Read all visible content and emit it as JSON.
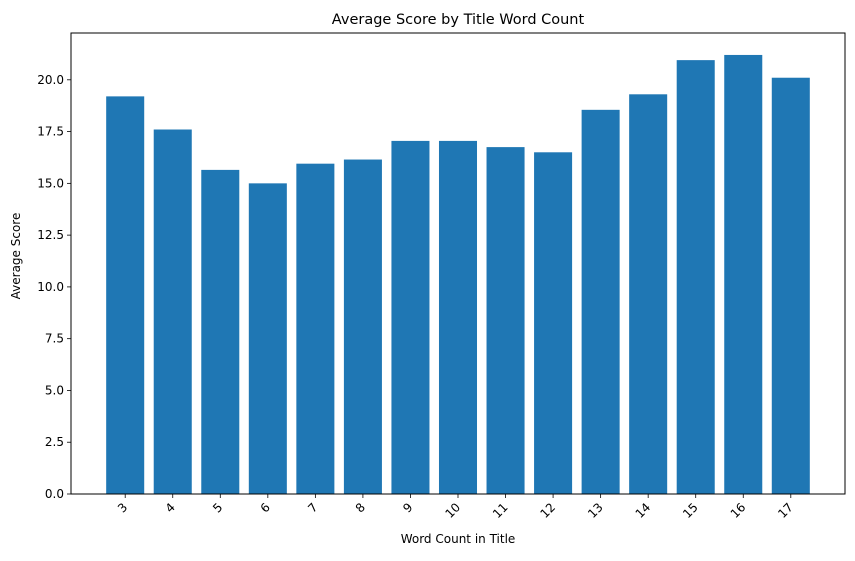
{
  "chart_data": {
    "type": "bar",
    "title": "Average Score by Title Word Count",
    "xlabel": "Word Count in Title",
    "ylabel": "Average Score",
    "categories": [
      "3",
      "4",
      "5",
      "6",
      "7",
      "8",
      "9",
      "10",
      "11",
      "12",
      "13",
      "14",
      "15",
      "16",
      "17"
    ],
    "values": [
      19.2,
      17.6,
      15.65,
      15.0,
      15.95,
      16.15,
      17.05,
      17.05,
      16.75,
      16.5,
      18.55,
      19.3,
      20.95,
      21.2,
      20.1
    ],
    "ylim": [
      0,
      22.26
    ],
    "yticks": [
      0.0,
      2.5,
      5.0,
      7.5,
      10.0,
      12.5,
      15.0,
      17.5,
      20.0
    ],
    "ytick_labels": [
      "0.0",
      "2.5",
      "5.0",
      "7.5",
      "10.0",
      "12.5",
      "15.0",
      "17.5",
      "20.0"
    ],
    "bar_color": "#1f77b4",
    "grid": false,
    "xtick_rotation": 45
  }
}
